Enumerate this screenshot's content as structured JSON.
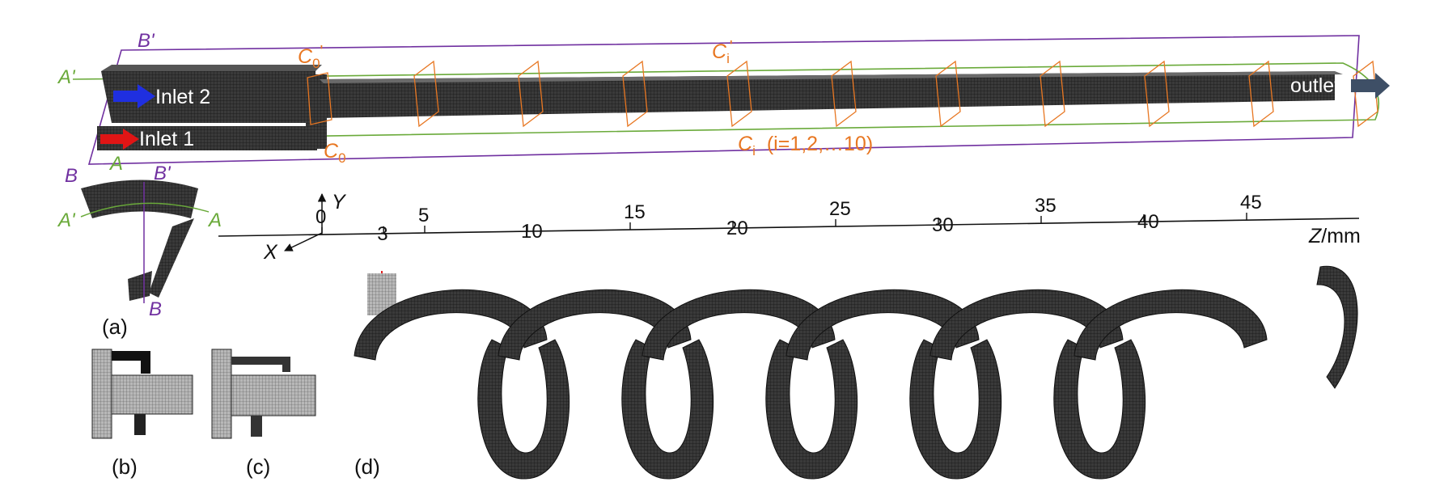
{
  "labels": {
    "b_prime_top": "B'",
    "a_prime_top": "A'",
    "b_left": "B",
    "a_left": "A",
    "inlet2": "Inlet 2",
    "inlet1": "Inlet 1",
    "outlet": "outlet",
    "c0_prime": "C",
    "c0_prime_sub": "0",
    "c0_prime_mark": "'",
    "ci_prime": "C",
    "ci_prime_sub": "i",
    "ci_prime_mark": "'",
    "c0": "C",
    "c0_sub": "0",
    "ci": "C",
    "ci_sub": "i",
    "ci_range": "(i=1,2,…10)",
    "sect_b_prime": "B'",
    "sect_a_prime": "A'",
    "sect_a": "A",
    "sect_b": "B",
    "panel_a": "(a)",
    "panel_b": "(b)",
    "panel_c": "(c)",
    "panel_d": "(d)",
    "axis_y": "Y",
    "axis_x": "X",
    "axis_z_var": "Z",
    "axis_z_unit": "/mm"
  },
  "z_ticks": [
    "0",
    "3",
    "5",
    "10",
    "15",
    "20",
    "25",
    "30",
    "35",
    "40",
    "45"
  ],
  "colors": {
    "section_A": "#6AAA3A",
    "section_B": "#7030A0",
    "cross_sections": "#E87722",
    "inlet2_arrow": "#1F2FE0",
    "inlet1_arrow": "#E01515",
    "outlet_arrow": "#3E4F66",
    "mesh": "#2a2a2a",
    "z0_marker": "#E02020"
  }
}
